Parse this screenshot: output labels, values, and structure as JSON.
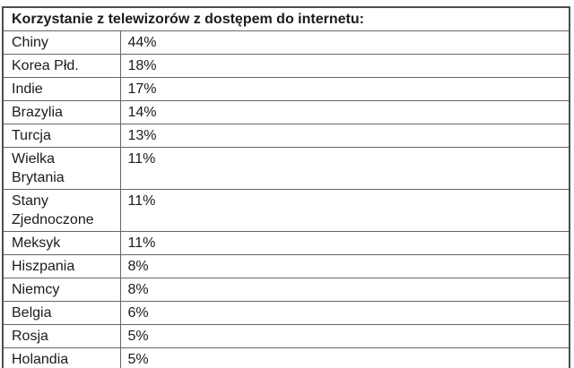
{
  "table": {
    "title": "Korzystanie z telewizorów z dostępem do internetu:",
    "rows": [
      {
        "country": "Chiny",
        "value": "44%"
      },
      {
        "country": "Korea Płd.",
        "value": "18%"
      },
      {
        "country": "Indie",
        "value": "17%"
      },
      {
        "country": "Brazylia",
        "value": "14%"
      },
      {
        "country": "Turcja",
        "value": "13%"
      },
      {
        "country": "Wielka\nBrytania",
        "value": "11%"
      },
      {
        "country": "Stany\nZjednoczone",
        "value": "11%"
      },
      {
        "country": "Meksyk",
        "value": "11%"
      },
      {
        "country": "Hiszpania",
        "value": "8%"
      },
      {
        "country": "Niemcy",
        "value": "8%"
      },
      {
        "country": "Belgia",
        "value": "6%"
      },
      {
        "country": "Rosja",
        "value": "5%"
      },
      {
        "country": "Holandia",
        "value": "5%"
      }
    ]
  },
  "chart_data": {
    "type": "table",
    "title": "Korzystanie z telewizorów z dostępem do internetu:",
    "categories": [
      "Chiny",
      "Korea Płd.",
      "Indie",
      "Brazylia",
      "Turcja",
      "Wielka Brytania",
      "Stany Zjednoczone",
      "Meksyk",
      "Hiszpania",
      "Niemcy",
      "Belgia",
      "Rosja",
      "Holandia"
    ],
    "values": [
      44,
      18,
      17,
      14,
      13,
      11,
      11,
      11,
      8,
      8,
      6,
      5,
      5
    ],
    "unit": "%",
    "layout": "two-column table, title row spans both columns, country column width ~131px",
    "colors": {
      "text": "#1b1b1b",
      "border_outer": "#4d4d4d",
      "border_inner": "#666666",
      "background": "#ffffff"
    }
  }
}
